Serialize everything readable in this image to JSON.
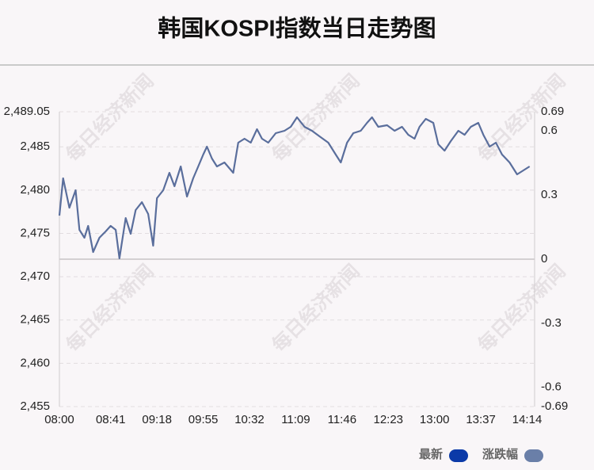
{
  "chart_data": {
    "type": "line",
    "title": "韩国KOSPI指数当日走势图",
    "watermark": "每日经济新闻",
    "x": [
      "08:00",
      "08:03",
      "08:08",
      "08:13",
      "08:16",
      "08:20",
      "08:23",
      "08:27",
      "08:32",
      "08:37",
      "08:41",
      "08:45",
      "08:48",
      "08:53",
      "08:57",
      "09:01",
      "09:06",
      "09:11",
      "09:15",
      "09:18",
      "09:23",
      "09:28",
      "09:32",
      "09:37",
      "09:42",
      "09:47",
      "09:51",
      "09:55",
      "09:58",
      "10:02",
      "10:06",
      "10:12",
      "10:19",
      "10:23",
      "10:28",
      "10:33",
      "10:38",
      "10:42",
      "10:47",
      "10:53",
      "11:00",
      "11:05",
      "11:10",
      "11:16",
      "11:22",
      "11:28",
      "11:35",
      "11:41",
      "11:45",
      "11:50",
      "11:55",
      "12:01",
      "12:06",
      "12:10",
      "12:15",
      "12:22",
      "12:28",
      "12:34",
      "12:39",
      "12:44",
      "12:48",
      "12:53",
      "12:59",
      "13:03",
      "13:08",
      "13:13",
      "13:19",
      "13:24",
      "13:29",
      "13:35",
      "13:39",
      "13:44",
      "13:49",
      "13:54",
      "14:00",
      "14:06",
      "14:11",
      "14:16"
    ],
    "values": [
      2477.06,
      2481.36,
      2477.97,
      2479.99,
      2475.41,
      2474.5,
      2475.87,
      2472.85,
      2474.5,
      2475.23,
      2475.87,
      2475.41,
      2472.12,
      2476.78,
      2474.95,
      2477.7,
      2478.61,
      2477.24,
      2473.58,
      2479.07,
      2479.99,
      2482.0,
      2480.45,
      2482.73,
      2479.26,
      2481.36,
      2482.73,
      2484.11,
      2485.02,
      2483.65,
      2482.73,
      2483.19,
      2482.0,
      2485.48,
      2485.94,
      2485.48,
      2487.04,
      2485.94,
      2485.48,
      2486.58,
      2486.85,
      2487.31,
      2488.41,
      2487.31,
      2486.85,
      2486.21,
      2485.48,
      2484.11,
      2483.19,
      2485.48,
      2486.58,
      2486.85,
      2487.77,
      2488.41,
      2487.31,
      2487.49,
      2486.85,
      2487.31,
      2486.39,
      2485.94,
      2487.31,
      2488.23,
      2487.77,
      2485.3,
      2484.56,
      2485.66,
      2486.85,
      2486.39,
      2487.31,
      2487.77,
      2486.39,
      2485.02,
      2485.48,
      2484.11,
      2483.19,
      2481.82,
      2482.28,
      2482.73
    ],
    "color": "#5a6e9c",
    "xlim": [
      "08:00",
      "14:20"
    ],
    "xticks": [
      "08:00",
      "08:41",
      "09:18",
      "09:55",
      "10:32",
      "11:09",
      "11:46",
      "12:23",
      "13:00",
      "13:37",
      "14:14"
    ],
    "ylim": [
      2455,
      2489.05
    ],
    "yticks": [
      {
        "value": 2455,
        "label": "2,455"
      },
      {
        "value": 2460,
        "label": "2,460"
      },
      {
        "value": 2465,
        "label": "2,465"
      },
      {
        "value": 2470,
        "label": "2,470"
      },
      {
        "value": 2475,
        "label": "2,475"
      },
      {
        "value": 2480,
        "label": "2,480"
      },
      {
        "value": 2485,
        "label": "2,485"
      },
      {
        "value": 2489.05,
        "label": "2,489.05"
      }
    ],
    "y2lim": [
      -0.69,
      0.69
    ],
    "y2ticks": [
      -0.69,
      -0.6,
      -0.3,
      0,
      0.3,
      0.6,
      0.69
    ],
    "grid": true,
    "legend": [
      {
        "name": "最新",
        "color": "#0b3aa8"
      },
      {
        "name": "涨跌幅",
        "color": "#6a7fa8"
      }
    ]
  }
}
